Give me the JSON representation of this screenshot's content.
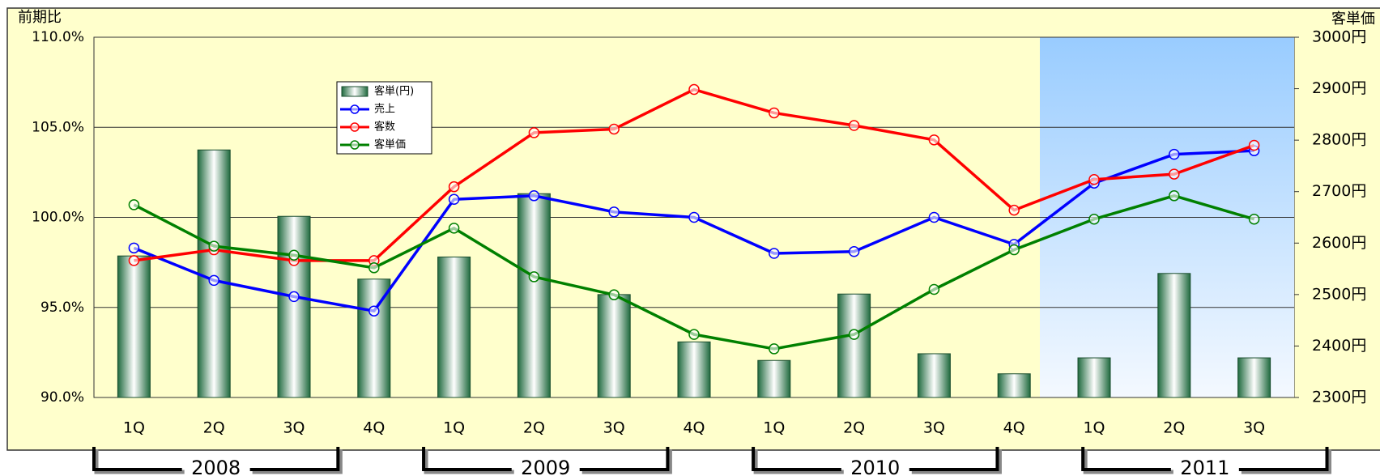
{
  "chart_data": {
    "type": "combo",
    "categories": [
      "1Q",
      "2Q",
      "3Q",
      "4Q",
      "1Q",
      "2Q",
      "3Q",
      "4Q",
      "1Q",
      "2Q",
      "3Q",
      "4Q",
      "1Q",
      "2Q",
      "3Q"
    ],
    "series": [
      {
        "name": "客単(円)",
        "type": "bar",
        "axis": "y2",
        "color": "#2e7d4f",
        "values": [
          2575,
          2781,
          2652,
          2530,
          2573,
          2696,
          2500,
          2408,
          2372,
          2501,
          2385,
          2346,
          2377,
          2541,
          2377
        ]
      },
      {
        "name": "売上",
        "type": "line",
        "color": "#0000ff",
        "values": [
          98.3,
          96.5,
          95.6,
          94.8,
          101.0,
          101.2,
          100.3,
          100.0,
          98.0,
          98.1,
          100.0,
          98.5,
          101.9,
          103.5,
          103.7
        ]
      },
      {
        "name": "客数",
        "type": "line",
        "color": "#ff0000",
        "values": [
          97.6,
          98.2,
          97.6,
          97.6,
          101.7,
          104.7,
          104.9,
          107.1,
          105.8,
          105.1,
          104.3,
          100.4,
          102.1,
          102.4,
          104.0
        ]
      },
      {
        "name": "客単価",
        "type": "line",
        "color": "#008000",
        "values": [
          100.7,
          98.4,
          97.9,
          97.2,
          99.4,
          96.7,
          95.7,
          93.5,
          92.7,
          93.5,
          96.0,
          98.2,
          99.9,
          101.2,
          99.9
        ]
      }
    ],
    "ylim": [
      90,
      110
    ],
    "yticks": [
      {
        "value": 90,
        "label": "90.0%"
      },
      {
        "value": 95,
        "label": "95.0%"
      },
      {
        "value": 100,
        "label": "100.0%"
      },
      {
        "value": 105,
        "label": "105.0%"
      },
      {
        "value": 110,
        "label": "110.0%"
      }
    ],
    "y2lim": [
      2300,
      3000
    ],
    "y2ticks": [
      {
        "value": 2300,
        "label": "2300円"
      },
      {
        "value": 2400,
        "label": "2400円"
      },
      {
        "value": 2500,
        "label": "2500円"
      },
      {
        "value": 2600,
        "label": "2600円"
      },
      {
        "value": 2700,
        "label": "2700円"
      },
      {
        "value": 2800,
        "label": "2800円"
      },
      {
        "value": 2900,
        "label": "2900円"
      },
      {
        "value": 3000,
        "label": "3000円"
      }
    ],
    "y_label": "前期比",
    "y2_label": "客単価",
    "year_groups": [
      "2008",
      "2009",
      "2010",
      "2011"
    ],
    "grid": true,
    "legend_position": "upper left"
  }
}
